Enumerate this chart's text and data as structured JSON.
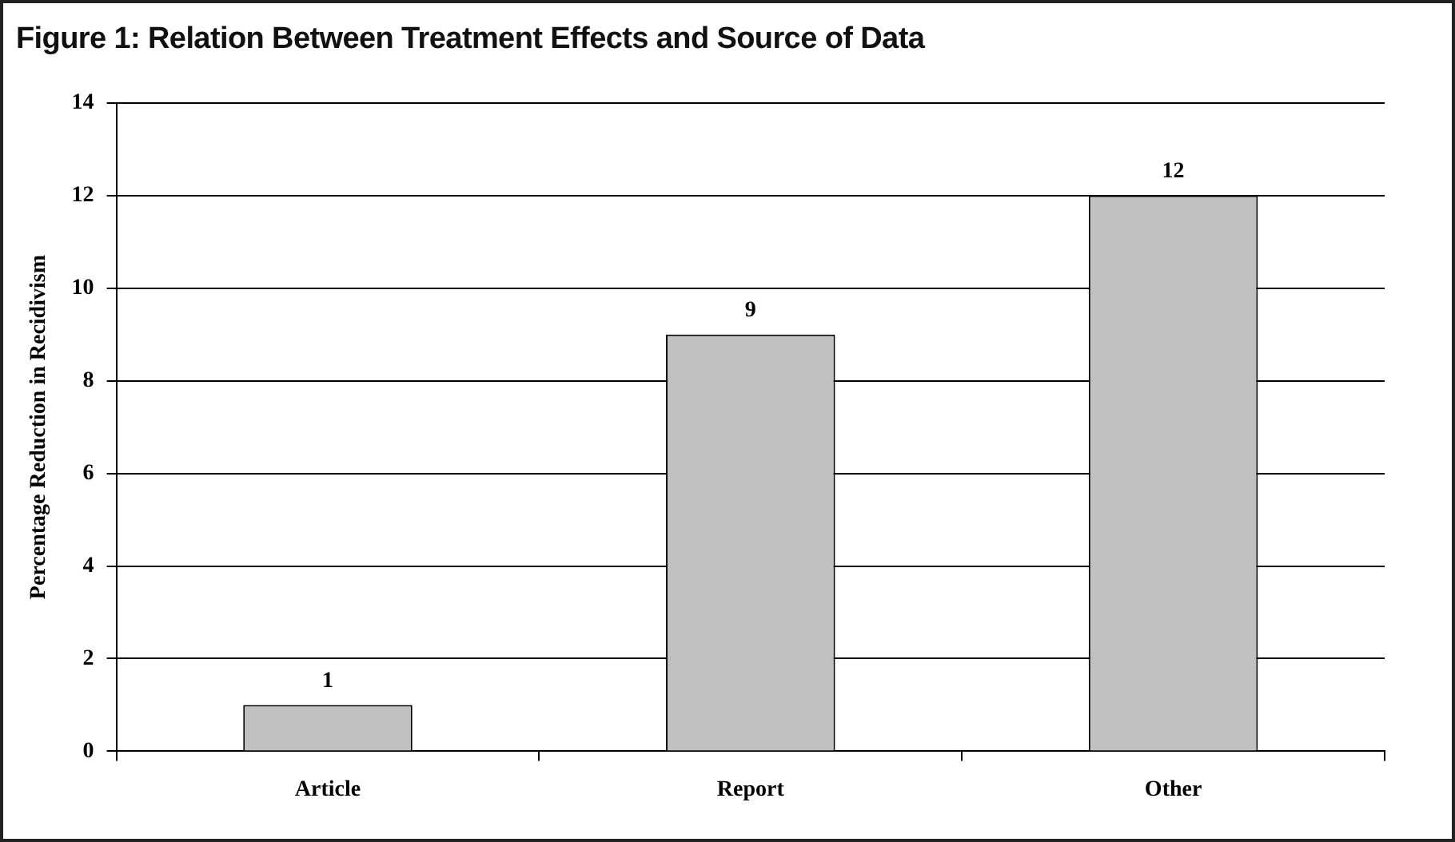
{
  "chart_data": {
    "type": "bar",
    "title": "Figure 1: Relation Between Treatment Effects and Source of Data",
    "ylabel": "Percentage Reduction in Recidivism",
    "categories": [
      "Article",
      "Report",
      "Other"
    ],
    "values": [
      1,
      9,
      12
    ],
    "color": "#c0c0c0",
    "ylim": [
      0,
      14
    ],
    "yticks": [
      0,
      2,
      4,
      6,
      8,
      10,
      12,
      14
    ],
    "grid": "y",
    "data_labels": true,
    "legend": false
  }
}
